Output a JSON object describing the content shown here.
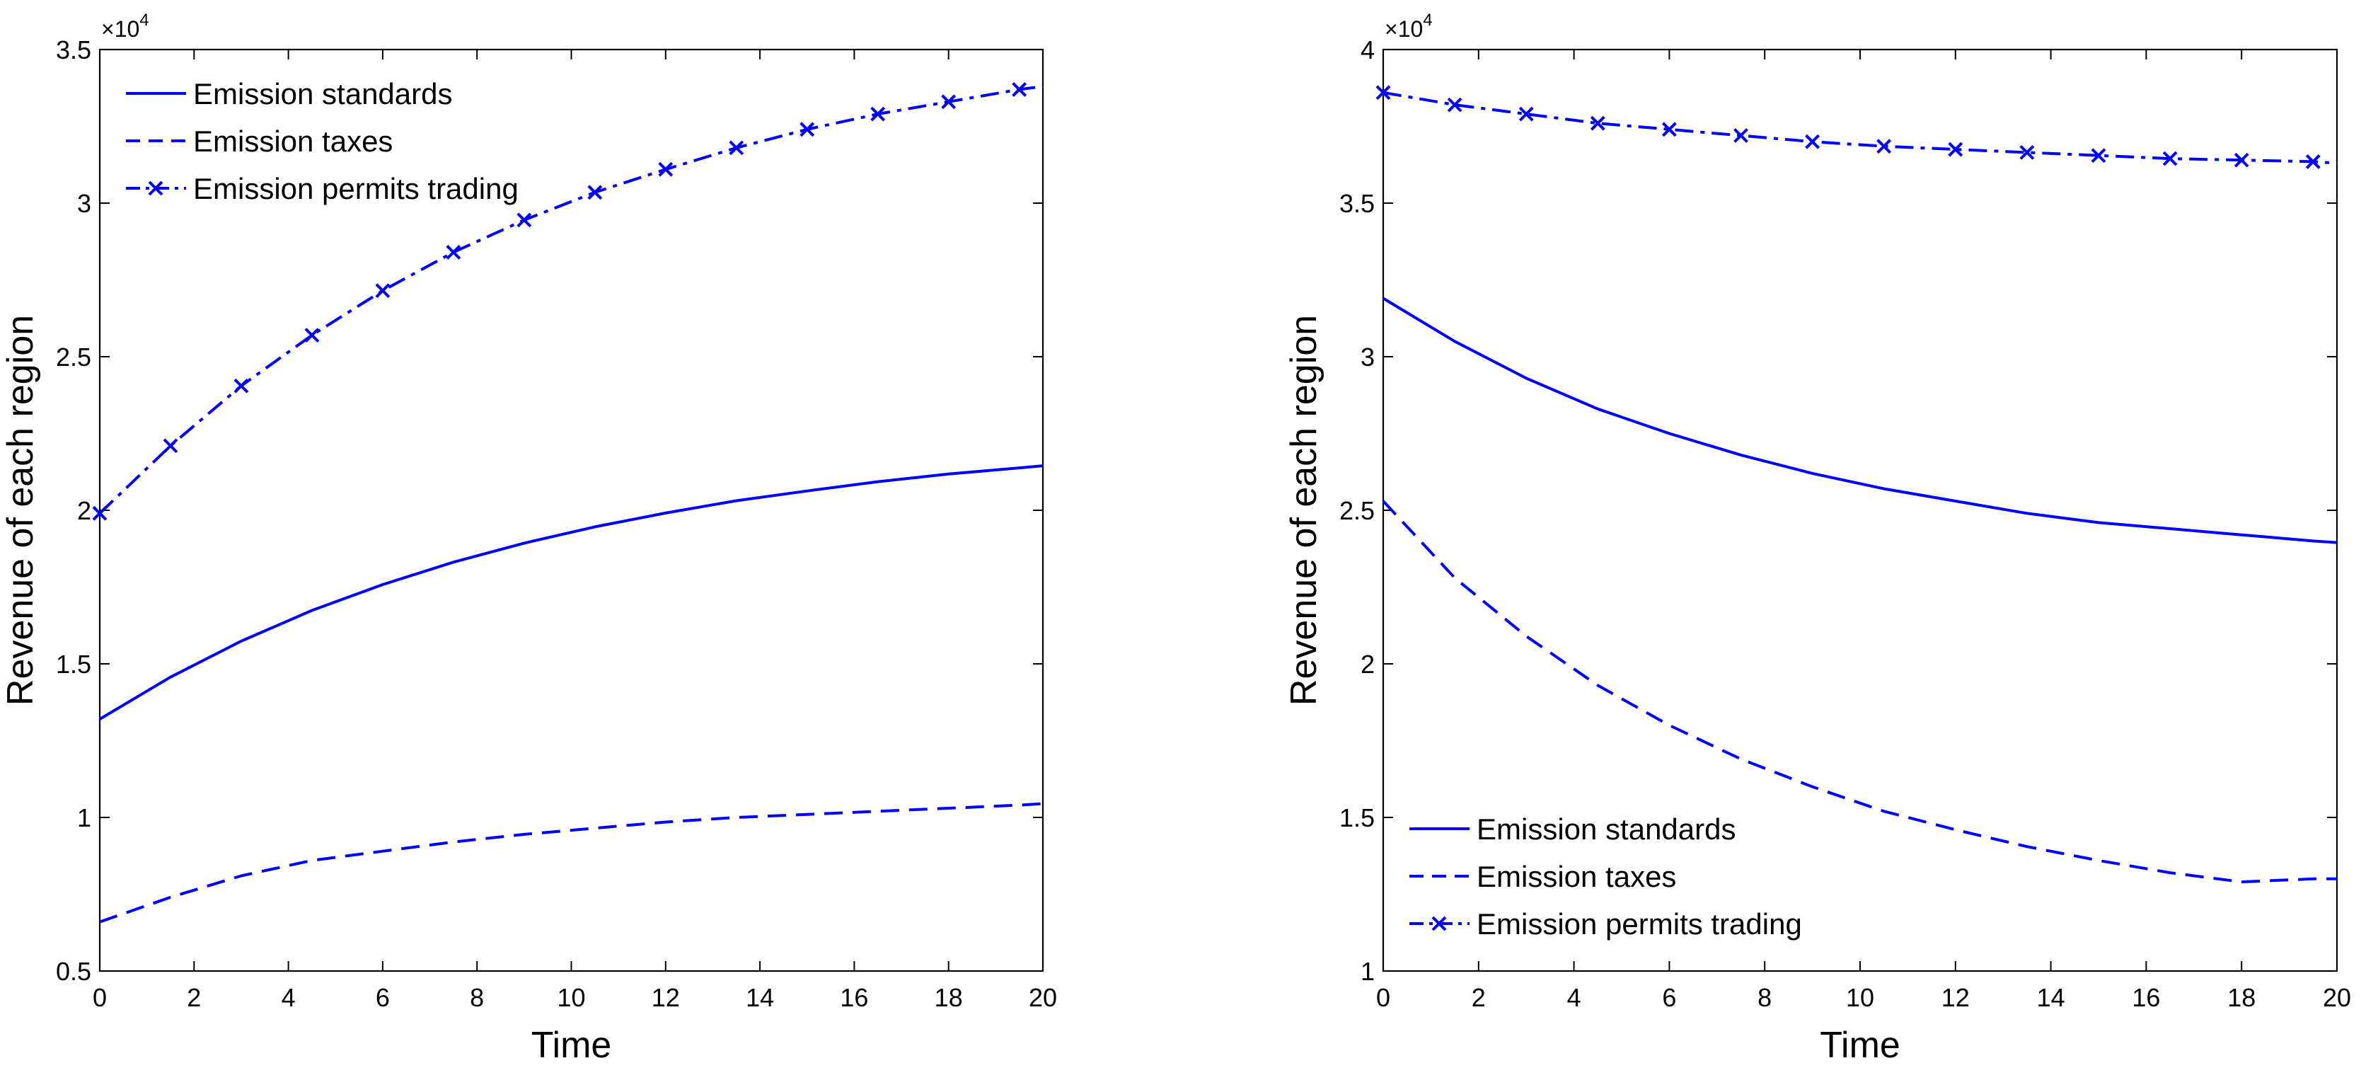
{
  "chart_data": [
    {
      "type": "line",
      "title": "",
      "xlabel": "Time",
      "ylabel": "Revenue of each region",
      "y_multiplier": "×10",
      "y_exponent": "4",
      "xlim": [
        0,
        20
      ],
      "ylim": [
        0.5,
        3.5
      ],
      "xticks": [
        0,
        2,
        4,
        6,
        8,
        10,
        12,
        14,
        16,
        18,
        20
      ],
      "yticks": [
        0.5,
        1,
        1.5,
        2,
        2.5,
        3,
        3.5
      ],
      "xtick_labels": [
        "0",
        "2",
        "4",
        "6",
        "8",
        "10",
        "12",
        "14",
        "16",
        "18",
        "20"
      ],
      "ytick_labels": [
        "0.5",
        "1",
        "1.5",
        "2",
        "2.5",
        "3",
        "3.5"
      ],
      "grid": false,
      "legend_position": "top-left",
      "color": "#0000ff",
      "x": [
        0,
        1.5,
        3,
        4.5,
        6,
        7.5,
        9,
        10.5,
        12,
        13.5,
        15,
        16.5,
        18,
        19.5,
        20
      ],
      "series": [
        {
          "name": "Emission standards",
          "style": "solid",
          "markers": false,
          "values": [
            1.32,
            1.457,
            1.574,
            1.674,
            1.758,
            1.831,
            1.893,
            1.946,
            1.991,
            2.031,
            2.063,
            2.093,
            2.118,
            2.138,
            2.145
          ]
        },
        {
          "name": "Emission taxes",
          "style": "dashed",
          "markers": false,
          "values": [
            0.66,
            0.74,
            0.81,
            0.86,
            0.89,
            0.92,
            0.945,
            0.965,
            0.985,
            1.0,
            1.01,
            1.02,
            1.03,
            1.04,
            1.045
          ]
        },
        {
          "name": "Emission permits trading",
          "style": "dashdot",
          "markers": true,
          "values": [
            1.99,
            2.21,
            2.405,
            2.57,
            2.715,
            2.84,
            2.945,
            3.035,
            3.11,
            3.18,
            3.24,
            3.29,
            3.33,
            3.37,
            3.38
          ]
        }
      ]
    },
    {
      "type": "line",
      "title": "",
      "xlabel": "Time",
      "ylabel": "Revenue of each region",
      "y_multiplier": "×10",
      "y_exponent": "4",
      "xlim": [
        0,
        20
      ],
      "ylim": [
        1,
        4
      ],
      "xticks": [
        0,
        2,
        4,
        6,
        8,
        10,
        12,
        14,
        16,
        18,
        20
      ],
      "yticks": [
        1,
        1.5,
        2,
        2.5,
        3,
        3.5,
        4
      ],
      "xtick_labels": [
        "0",
        "2",
        "4",
        "6",
        "8",
        "10",
        "12",
        "14",
        "16",
        "18",
        "20"
      ],
      "ytick_labels": [
        "1",
        "1.5",
        "2",
        "2.5",
        "3",
        "3.5",
        "4"
      ],
      "grid": false,
      "legend_position": "bottom-left",
      "color": "#0000ff",
      "x": [
        0,
        1.5,
        3,
        4.5,
        6,
        7.5,
        9,
        10.5,
        12,
        13.5,
        15,
        16.5,
        18,
        19.5,
        20
      ],
      "series": [
        {
          "name": "Emission standards",
          "style": "solid",
          "markers": false,
          "values": [
            3.19,
            3.05,
            2.93,
            2.83,
            2.75,
            2.68,
            2.62,
            2.57,
            2.53,
            2.49,
            2.46,
            2.44,
            2.42,
            2.4,
            2.395
          ]
        },
        {
          "name": "Emission taxes",
          "style": "dashed",
          "markers": false,
          "values": [
            2.53,
            2.28,
            2.09,
            1.93,
            1.8,
            1.69,
            1.6,
            1.52,
            1.46,
            1.405,
            1.36,
            1.32,
            1.29,
            1.3,
            1.3
          ]
        },
        {
          "name": "Emission permits trading",
          "style": "dashdot",
          "markers": true,
          "values": [
            3.86,
            3.82,
            3.79,
            3.76,
            3.74,
            3.72,
            3.7,
            3.685,
            3.675,
            3.665,
            3.655,
            3.645,
            3.64,
            3.635,
            3.63
          ]
        }
      ]
    }
  ]
}
